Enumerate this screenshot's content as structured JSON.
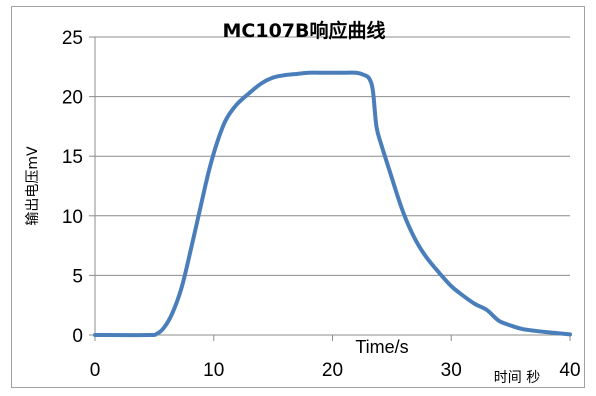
{
  "chart_data": {
    "type": "line",
    "title": "MC107B响应曲线",
    "ylabel": "输出电压mV",
    "xlabel_center": "Time/s",
    "xlabel_right": "时间 秒",
    "xlim": [
      0,
      40
    ],
    "ylim": [
      0,
      25
    ],
    "x_ticks": [
      0,
      10,
      20,
      30,
      40
    ],
    "y_ticks": [
      0,
      5,
      10,
      15,
      20,
      25
    ],
    "grid": true,
    "line_color": "#4a7ebb",
    "series": [
      {
        "x": [
          0,
          4.5,
          5.2,
          5.8,
          6.5,
          7.3,
          8.1,
          8.9,
          9.6,
          10.3,
          11.0,
          11.9,
          13.0,
          14.0,
          15.0,
          16.0,
          17.0,
          18.0,
          19.5,
          21.0,
          22.0,
          22.7,
          23.1,
          23.4,
          23.7,
          24.1,
          24.8,
          25.7,
          26.4,
          27.2,
          28.0,
          29.0,
          30.0,
          31.0,
          32.0,
          33.0,
          34.0,
          35.0,
          36.0,
          37.5,
          39.0,
          40.0
        ],
        "y": [
          0,
          0,
          0.1,
          0.6,
          1.8,
          4.0,
          7.3,
          10.8,
          13.8,
          16.2,
          18.0,
          19.3,
          20.3,
          21.1,
          21.6,
          21.8,
          21.9,
          22.0,
          22.0,
          22.0,
          22.0,
          21.8,
          21.5,
          20.5,
          17.5,
          16.0,
          13.8,
          11.0,
          9.2,
          7.6,
          6.4,
          5.2,
          4.1,
          3.3,
          2.6,
          2.1,
          1.2,
          0.8,
          0.5,
          0.3,
          0.15,
          0.05
        ]
      }
    ]
  }
}
